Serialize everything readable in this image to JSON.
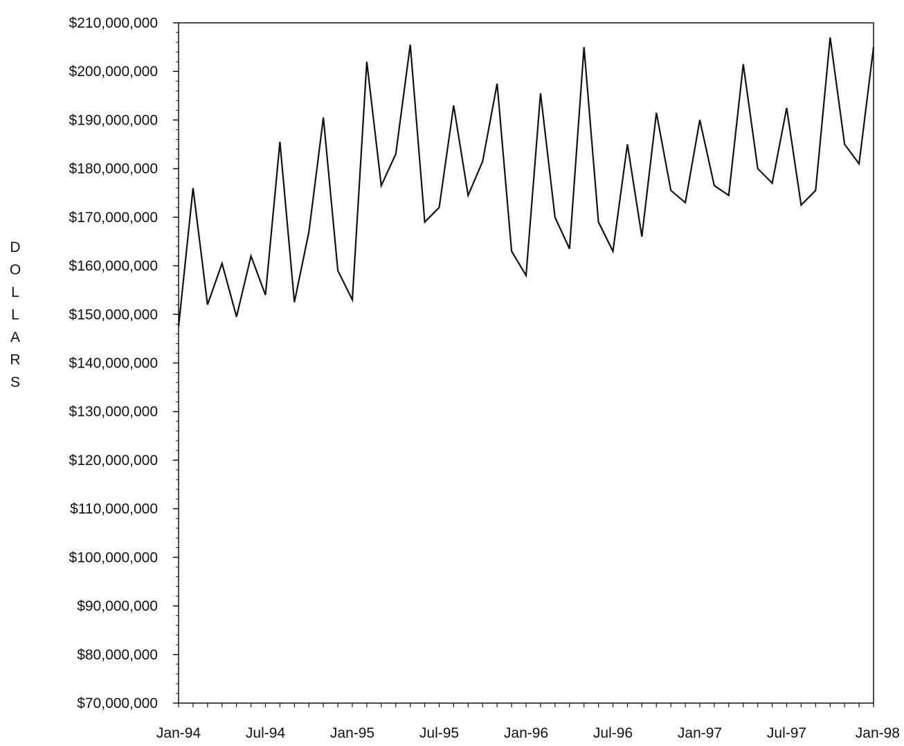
{
  "chart_data": {
    "type": "line",
    "title": "",
    "xlabel": "",
    "ylabel": "DOLLARS",
    "ylim": [
      70000000,
      210000000
    ],
    "xlim": [
      "Jan-94",
      "Jan-98"
    ],
    "grid": false,
    "legend": "none",
    "y_ticks": [
      "$70,000,000",
      "$80,000,000",
      "$90,000,000",
      "$100,000,000",
      "$110,000,000",
      "$120,000,000",
      "$130,000,000",
      "$140,000,000",
      "$150,000,000",
      "$160,000,000",
      "$170,000,000",
      "$180,000,000",
      "$190,000,000",
      "$200,000,000",
      "$210,000,000"
    ],
    "y_tick_values": [
      70000000,
      80000000,
      90000000,
      100000000,
      110000000,
      120000000,
      130000000,
      140000000,
      150000000,
      160000000,
      170000000,
      180000000,
      190000000,
      200000000,
      210000000
    ],
    "x_ticks": [
      "Jan-94",
      "Jul-94",
      "Jan-95",
      "Jul-95",
      "Jan-96",
      "Jul-96",
      "Jan-97",
      "Jul-97",
      "Jan-98"
    ],
    "x": [
      "Jan-94",
      "Feb-94",
      "Mar-94",
      "Apr-94",
      "May-94",
      "Jun-94",
      "Jul-94",
      "Aug-94",
      "Sep-94",
      "Oct-94",
      "Nov-94",
      "Dec-94",
      "Jan-95",
      "Feb-95",
      "Mar-95",
      "Apr-95",
      "May-95",
      "Jun-95",
      "Jul-95",
      "Aug-95",
      "Sep-95",
      "Oct-95",
      "Nov-95",
      "Dec-95",
      "Jan-96",
      "Feb-96",
      "Mar-96",
      "Apr-96",
      "May-96",
      "Jun-96",
      "Jul-96",
      "Aug-96",
      "Sep-96",
      "Oct-96",
      "Nov-96",
      "Dec-96",
      "Jan-97",
      "Feb-97",
      "Mar-97",
      "Apr-97",
      "May-97",
      "Jun-97",
      "Jul-97",
      "Aug-97",
      "Sep-97",
      "Oct-97",
      "Nov-97",
      "Dec-97",
      "Jan-98"
    ],
    "series": [
      {
        "values": [
          147500000,
          176000000,
          152000000,
          160500000,
          149500000,
          162000000,
          154000000,
          185500000,
          152500000,
          167000000,
          190500000,
          159000000,
          153000000,
          202000000,
          176500000,
          183000000,
          205500000,
          169000000,
          172000000,
          193000000,
          174500000,
          181500000,
          197500000,
          163000000,
          158000000,
          195500000,
          170000000,
          163500000,
          205000000,
          169000000,
          163000000,
          185000000,
          166000000,
          191500000,
          175500000,
          173000000,
          190000000,
          176500000,
          174500000,
          201500000,
          180000000,
          177000000,
          192500000,
          172500000,
          175500000,
          207000000,
          185000000,
          181000000,
          205000000
        ],
        "color": "#111111"
      }
    ]
  }
}
